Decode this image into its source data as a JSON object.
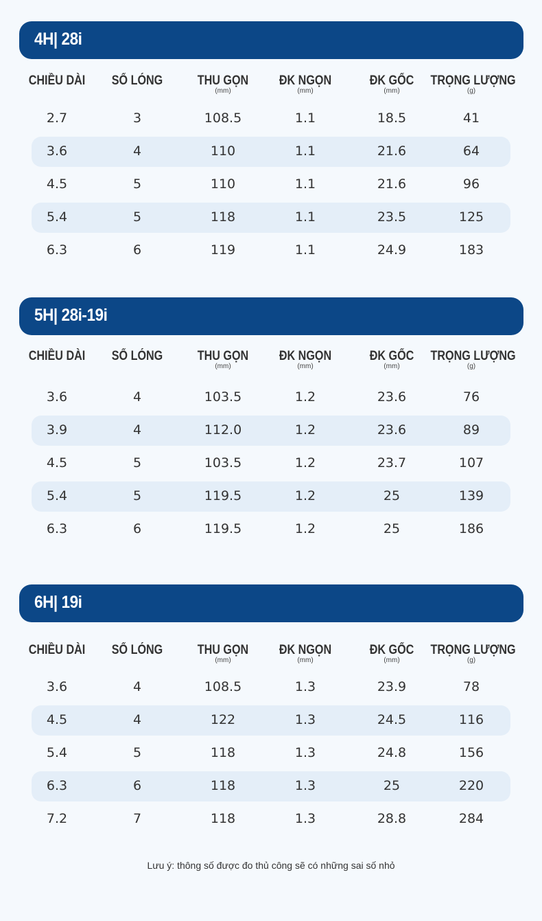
{
  "columns": [
    {
      "label": "CHIỀU DÀI",
      "unit": ""
    },
    {
      "label": "SỐ LÓNG",
      "unit": ""
    },
    {
      "label": "THU GỌN",
      "unit": "(mm)"
    },
    {
      "label": "ĐK NGỌN",
      "unit": "(mm)"
    },
    {
      "label": "ĐK GỐC",
      "unit": "(mm)"
    },
    {
      "label": "TRỌNG LƯỢNG",
      "unit": "(g)"
    }
  ],
  "sections": [
    {
      "title": "4H| 28i",
      "rows": [
        [
          "2.7",
          "3",
          "108.5",
          "1.1",
          "18.5",
          "41"
        ],
        [
          "3.6",
          "4",
          "110",
          "1.1",
          "21.6",
          "64"
        ],
        [
          "4.5",
          "5",
          "110",
          "1.1",
          "21.6",
          "96"
        ],
        [
          "5.4",
          "5",
          "118",
          "1.1",
          "23.5",
          "125"
        ],
        [
          "6.3",
          "6",
          "119",
          "1.1",
          "24.9",
          "183"
        ]
      ]
    },
    {
      "title": "5H| 28i-19i",
      "rows": [
        [
          "3.6",
          "4",
          "103.5",
          "1.2",
          "23.6",
          "76"
        ],
        [
          "3.9",
          "4",
          "112.0",
          "1.2",
          "23.6",
          "89"
        ],
        [
          "4.5",
          "5",
          "103.5",
          "1.2",
          "23.7",
          "107"
        ],
        [
          "5.4",
          "5",
          "119.5",
          "1.2",
          "25",
          "139"
        ],
        [
          "6.3",
          "6",
          "119.5",
          "1.2",
          "25",
          "186"
        ]
      ]
    },
    {
      "title": "6H| 19i",
      "rows": [
        [
          "3.6",
          "4",
          "108.5",
          "1.3",
          "23.9",
          "78"
        ],
        [
          "4.5",
          "4",
          "122",
          "1.3",
          "24.5",
          "116"
        ],
        [
          "5.4",
          "5",
          "118",
          "1.3",
          "24.8",
          "156"
        ],
        [
          "6.3",
          "6",
          "118",
          "1.3",
          "25",
          "220"
        ],
        [
          "7.2",
          "7",
          "118",
          "1.3",
          "28.8",
          "284"
        ]
      ]
    }
  ],
  "note": "Lưu ý: thông số được đo thủ công sẽ có những sai số nhỏ"
}
